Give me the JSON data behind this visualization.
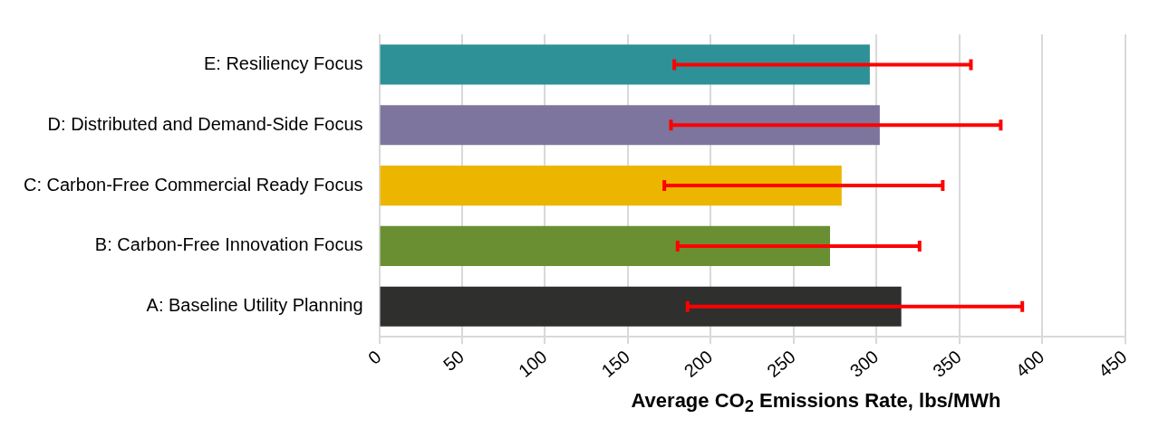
{
  "chart_data": {
    "type": "bar",
    "orientation": "horizontal",
    "xlabel": "Average CO$_{2}$ Emissions Rate, lbs/MWh",
    "categories": [
      "E: Resiliency Focus",
      "D: Distributed and Demand-Side Focus",
      "C: Carbon-Free Commercial Ready Focus",
      "B: Carbon-Free Innovation Focus",
      "A: Baseline Utility Planning"
    ],
    "values": [
      296,
      302,
      279,
      272,
      315
    ],
    "colors": [
      "#2e9198",
      "#7d759d",
      "#ecb500",
      "#6a8f33",
      "#2f2f2e"
    ],
    "errors": [
      [
        178,
        357
      ],
      [
        176,
        375
      ],
      [
        172,
        340
      ],
      [
        180,
        326
      ],
      [
        186,
        388
      ]
    ],
    "xlim": [
      0,
      450
    ],
    "xticks": [
      0,
      50,
      100,
      150,
      200,
      250,
      300,
      350,
      400,
      450
    ],
    "grid": "x",
    "legend": false
  }
}
